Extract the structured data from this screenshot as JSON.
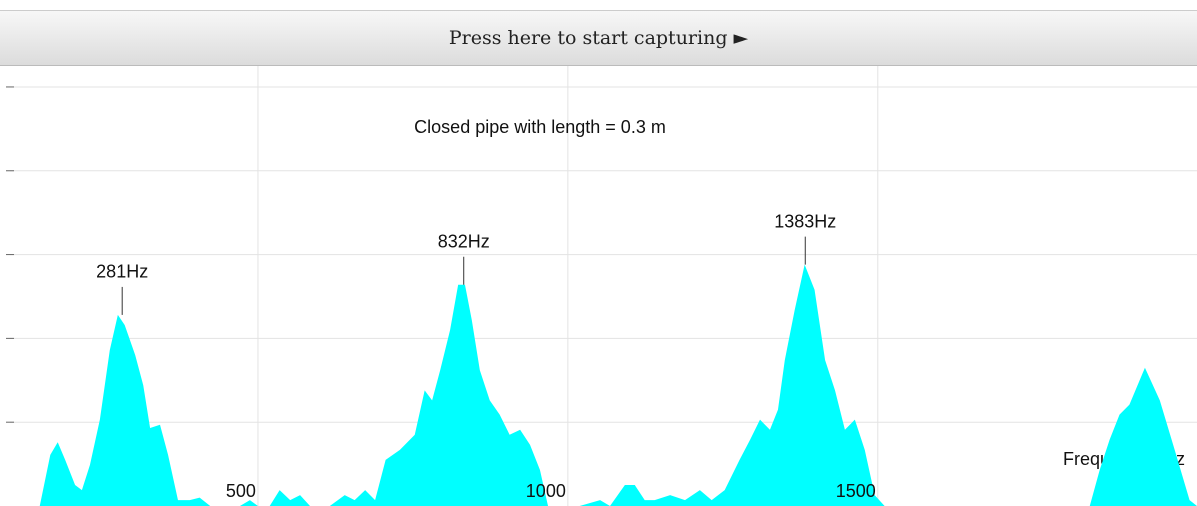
{
  "button": "Press here to start capturing ►",
  "chart_data": {
    "type": "area",
    "title": "Closed pipe with length = 0.3 m",
    "xlabel": "Frequency / Hz",
    "color": "#00ffff",
    "x": [
      100,
      148,
      165,
      177,
      189,
      205,
      216,
      229,
      245,
      261,
      274,
      285,
      302,
      315,
      326,
      342,
      355,
      371,
      390,
      406,
      423,
      471,
      487,
      500,
      519,
      535,
      552,
      568,
      584,
      616,
      640,
      656,
      673,
      689,
      706,
      729,
      753,
      769,
      781,
      794,
      810,
      823,
      834,
      845,
      858,
      874,
      890,
      906,
      923,
      939,
      955,
      968,
      987,
      1019,
      1052,
      1068,
      1092,
      1108,
      1124,
      1140,
      1165,
      1189,
      1213,
      1232,
      1253,
      1277,
      1294,
      1310,
      1326,
      1339,
      1350,
      1366,
      1382,
      1398,
      1415,
      1431,
      1447,
      1463,
      1479,
      1495,
      1511,
      1632,
      1842,
      1858,
      1874,
      1890,
      1906,
      1931,
      1955,
      1979,
      2003,
      2015
    ],
    "values": [
      0,
      0,
      0.61,
      0.76,
      0.55,
      0.25,
      0.19,
      0.49,
      1.03,
      1.86,
      2.28,
      2.16,
      1.8,
      1.44,
      0.93,
      0.97,
      0.61,
      0.07,
      0.07,
      0.1,
      0,
      0,
      0.07,
      0,
      0,
      0.19,
      0.07,
      0.13,
      0,
      0,
      0.13,
      0.07,
      0.19,
      0.07,
      0.55,
      0.67,
      0.85,
      1.38,
      1.26,
      1.62,
      2.1,
      2.64,
      2.64,
      2.22,
      1.62,
      1.26,
      1.09,
      0.85,
      0.91,
      0.73,
      0.43,
      0,
      0,
      0,
      0.07,
      0,
      0.25,
      0.25,
      0.07,
      0.07,
      0.13,
      0.07,
      0.19,
      0.07,
      0.19,
      0.55,
      0.79,
      1.03,
      0.91,
      1.15,
      1.74,
      2.34,
      2.88,
      2.58,
      1.74,
      1.38,
      0.91,
      1.03,
      0.67,
      0.13,
      0,
      0,
      0,
      0.43,
      0.79,
      1.09,
      1.21,
      1.65,
      1.26,
      0.67,
      0.07,
      0
    ],
    "xlim": [
      100,
      2015
    ],
    "xticks": [
      500,
      1000,
      1500
    ],
    "ylim": [
      0,
      5.25
    ],
    "yticks": [
      1,
      2,
      3,
      4,
      5
    ],
    "grid": true,
    "annotations": [
      {
        "text": "281Hz",
        "x": 281,
        "y": 2.28
      },
      {
        "text": "832Hz",
        "x": 832,
        "y": 2.64
      },
      {
        "text": "1383Hz",
        "x": 1383,
        "y": 2.88
      }
    ]
  }
}
